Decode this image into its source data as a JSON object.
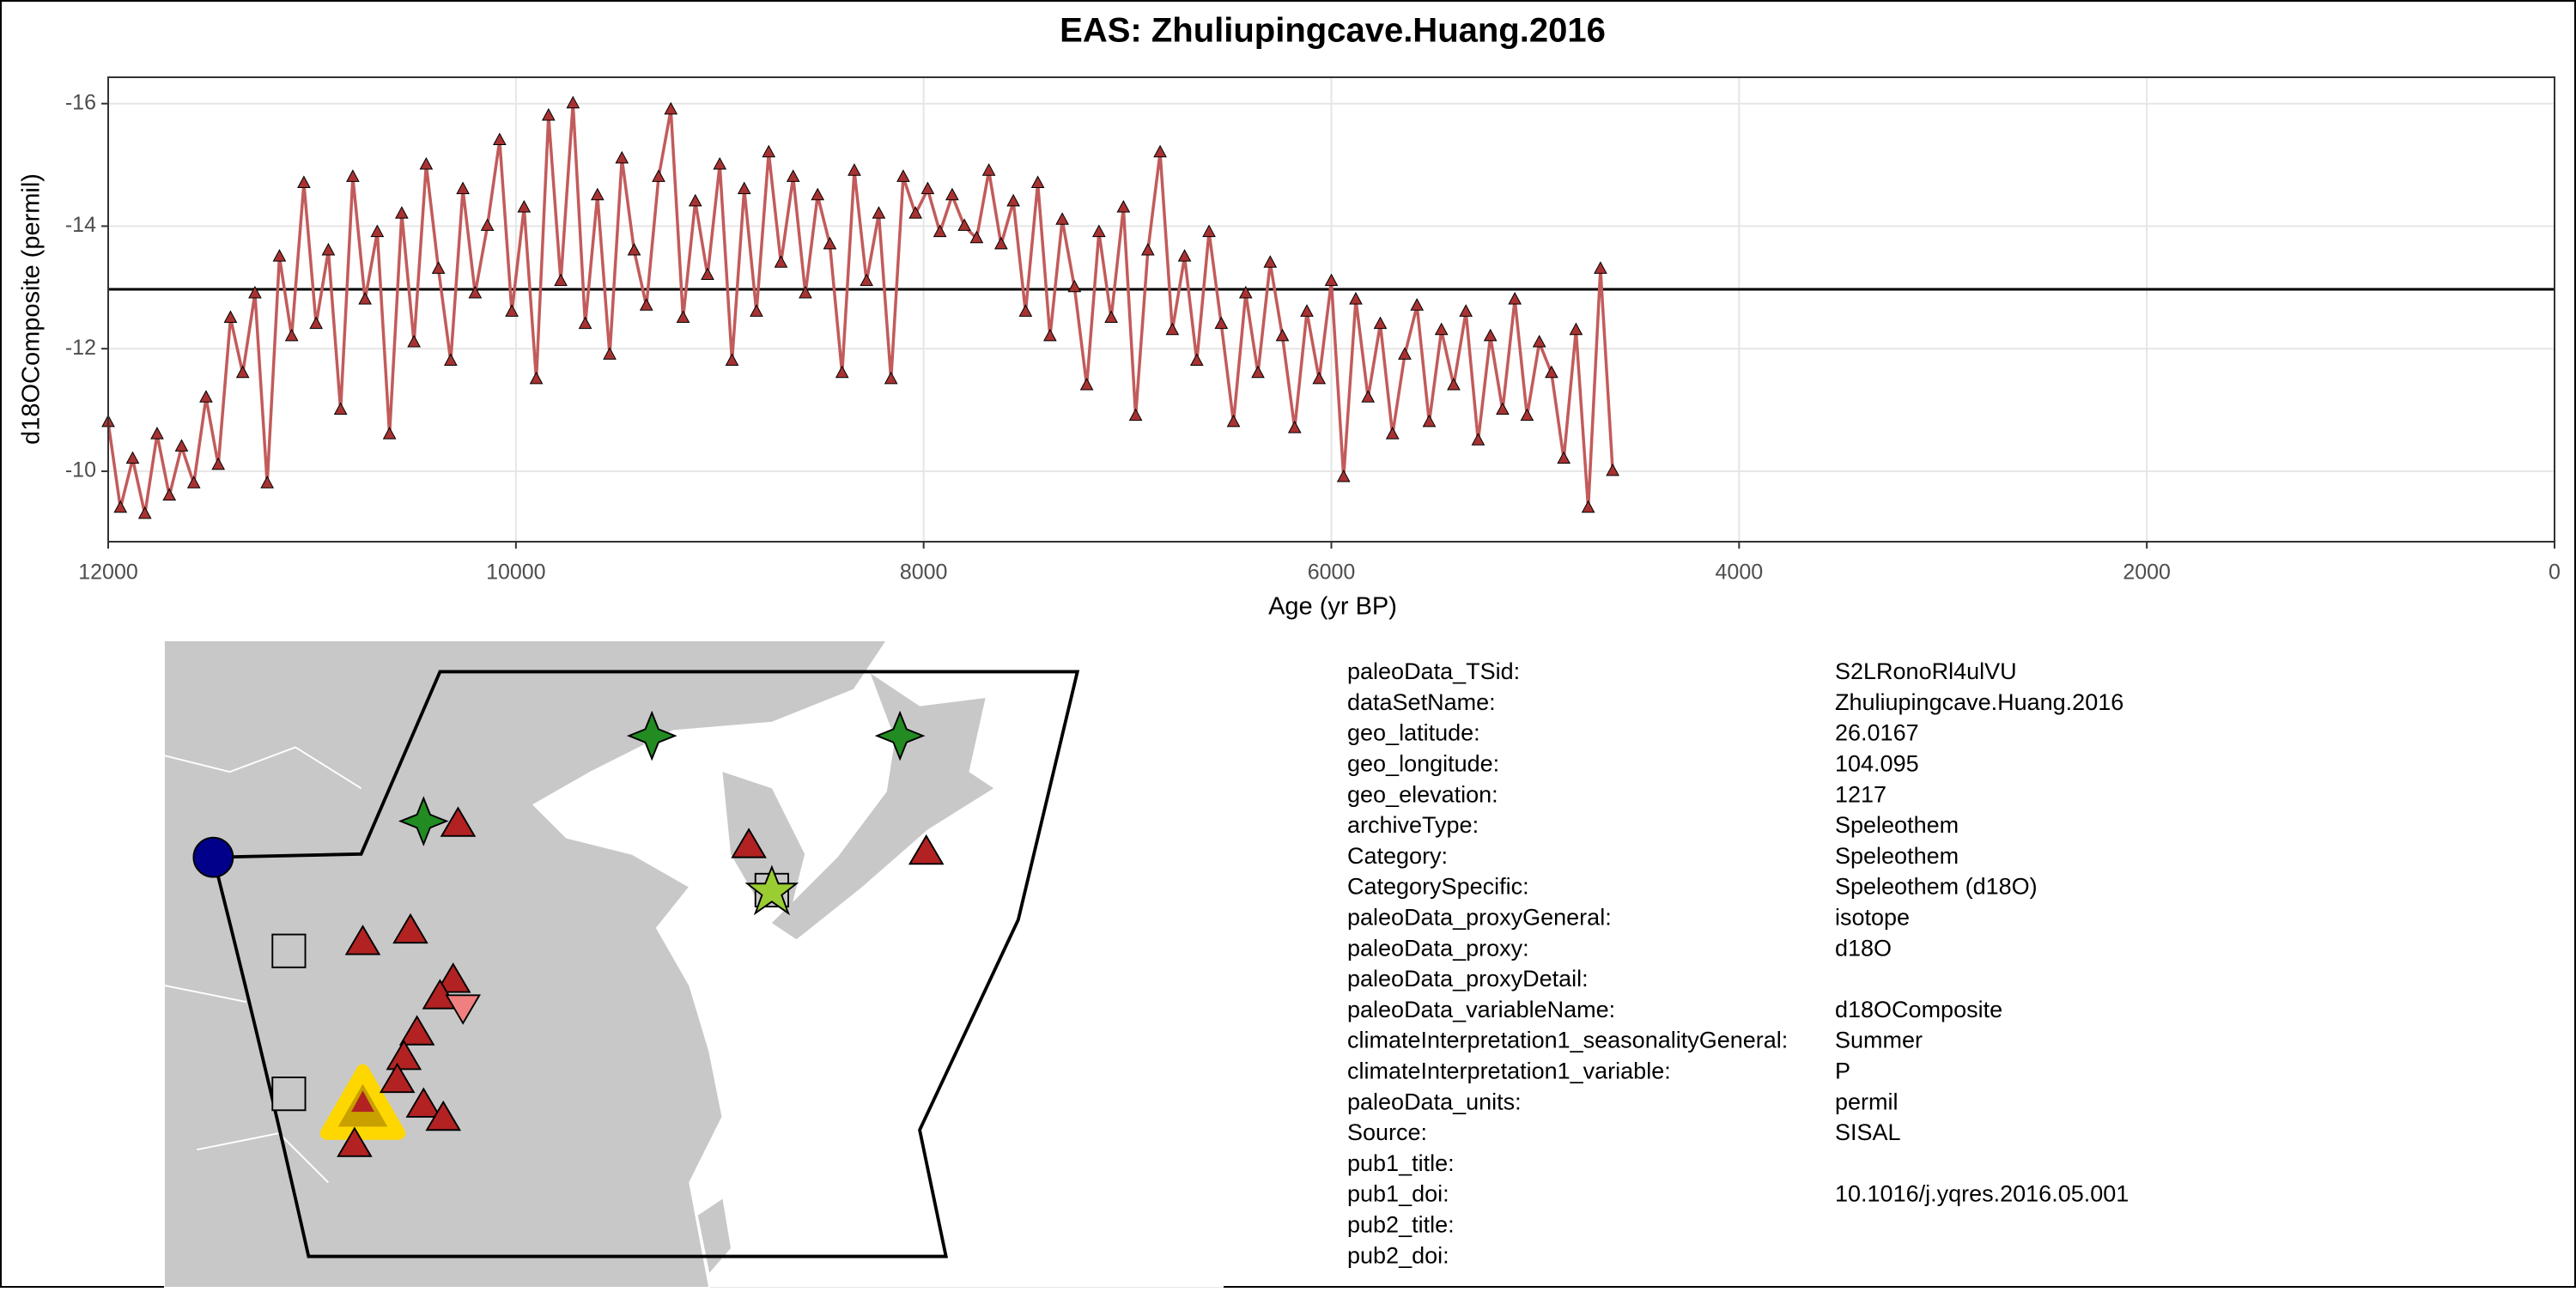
{
  "chart_data": {
    "type": "line",
    "title": "EAS: Zhuliupingcave.Huang.2016",
    "x_label": "Age (yr BP)",
    "y_label": "d18OComposite (permil)",
    "xlim": [
      12000,
      0
    ],
    "xticks": [
      12000,
      10000,
      8000,
      6000,
      4000,
      2000,
      0
    ],
    "ylim": [
      -8.85,
      -16.43
    ],
    "yticks": [
      -16,
      -14,
      -12,
      -10
    ],
    "grid": true,
    "mean_line": -12.97,
    "x": [
      12000,
      11940,
      11880,
      11820,
      11760,
      11700,
      11640,
      11580,
      11520,
      11460,
      11400,
      11340,
      11280,
      11220,
      11160,
      11100,
      11040,
      10980,
      10920,
      10860,
      10800,
      10740,
      10680,
      10620,
      10560,
      10500,
      10440,
      10380,
      10320,
      10260,
      10200,
      10140,
      10080,
      10020,
      9960,
      9900,
      9840,
      9780,
      9720,
      9660,
      9600,
      9540,
      9480,
      9420,
      9360,
      9300,
      9240,
      9180,
      9120,
      9060,
      9000,
      8940,
      8880,
      8820,
      8760,
      8700,
      8640,
      8580,
      8520,
      8460,
      8400,
      8340,
      8280,
      8220,
      8160,
      8100,
      8040,
      7980,
      7920,
      7860,
      7800,
      7740,
      7680,
      7620,
      7560,
      7500,
      7440,
      7380,
      7320,
      7260,
      7200,
      7140,
      7080,
      7020,
      6960,
      6900,
      6840,
      6780,
      6720,
      6660,
      6600,
      6540,
      6480,
      6420,
      6360,
      6300,
      6240,
      6180,
      6120,
      6060,
      6000,
      5940,
      5880,
      5820,
      5760,
      5700,
      5640,
      5580,
      5520,
      5460,
      5400,
      5340,
      5280,
      5220,
      5160,
      5100,
      5040,
      4980,
      4920,
      4860,
      4800,
      4740,
      4680,
      4620
    ],
    "series": [
      {
        "color": "#c25b5b",
        "marker_color": "#a83232",
        "values": [
          -10.8,
          -9.4,
          -10.2,
          -9.3,
          -10.6,
          -9.6,
          -10.4,
          -9.8,
          -11.2,
          -10.1,
          -12.5,
          -11.6,
          -12.9,
          -9.8,
          -13.5,
          -12.2,
          -14.7,
          -12.4,
          -13.6,
          -11.0,
          -14.8,
          -12.8,
          -13.9,
          -10.6,
          -14.2,
          -12.1,
          -15.0,
          -13.3,
          -11.8,
          -14.6,
          -12.9,
          -14.0,
          -15.4,
          -12.6,
          -14.3,
          -11.5,
          -15.8,
          -13.1,
          -16.0,
          -12.4,
          -14.5,
          -11.9,
          -15.1,
          -13.6,
          -12.7,
          -14.8,
          -15.9,
          -12.5,
          -14.4,
          -13.2,
          -15.0,
          -11.8,
          -14.6,
          -12.6,
          -15.2,
          -13.4,
          -14.8,
          -12.9,
          -14.5,
          -13.7,
          -11.6,
          -14.9,
          -13.1,
          -14.2,
          -11.5,
          -14.8,
          -14.2,
          -14.6,
          -13.9,
          -14.5,
          -14.0,
          -13.8,
          -14.9,
          -13.7,
          -14.4,
          -12.6,
          -14.7,
          -12.2,
          -14.1,
          -13.0,
          -11.4,
          -13.9,
          -12.5,
          -14.3,
          -10.9,
          -13.6,
          -15.2,
          -12.3,
          -13.5,
          -11.8,
          -13.9,
          -12.4,
          -10.8,
          -12.9,
          -11.6,
          -13.4,
          -12.2,
          -10.7,
          -12.6,
          -11.5,
          -13.1,
          -9.9,
          -12.8,
          -11.2,
          -12.4,
          -10.6,
          -11.9,
          -12.7,
          -10.8,
          -12.3,
          -11.4,
          -12.6,
          -10.5,
          -12.2,
          -11.0,
          -12.8,
          -10.9,
          -12.1,
          -11.6,
          -10.2,
          -12.3,
          -9.4,
          -13.3,
          -10.0
        ]
      }
    ]
  },
  "metadata": [
    {
      "key": "paleoData_TSid:",
      "value": "S2LRonoRl4ulVU"
    },
    {
      "key": "dataSetName:",
      "value": "Zhuliupingcave.Huang.2016"
    },
    {
      "key": "geo_latitude:",
      "value": "26.0167"
    },
    {
      "key": "geo_longitude:",
      "value": "104.095"
    },
    {
      "key": "geo_elevation:",
      "value": "1217"
    },
    {
      "key": "archiveType:",
      "value": "Speleothem"
    },
    {
      "key": "Category:",
      "value": "Speleothem"
    },
    {
      "key": "CategorySpecific:",
      "value": "Speleothem (d18O)"
    },
    {
      "key": "paleoData_proxyGeneral:",
      "value": "isotope"
    },
    {
      "key": "paleoData_proxy:",
      "value": "d18O"
    },
    {
      "key": "paleoData_proxyDetail:"
    },
    {
      "key": "paleoData_variableName:",
      "value": "d18OComposite"
    },
    {
      "key": "climateInterpretation1_seasonalityGeneral:",
      "value": "Summer"
    },
    {
      "key": "climateInterpretation1_variable:",
      "value": "P"
    },
    {
      "key": "paleoData_units:",
      "value": "permil"
    },
    {
      "key": "Source:",
      "value": "SISAL"
    },
    {
      "key": "pub1_title:"
    },
    {
      "key": "pub1_doi:",
      "value": "10.1016/j.yqres.2016.05.001"
    },
    {
      "key": "pub2_title:"
    },
    {
      "key": "pub2_doi:"
    }
  ]
}
